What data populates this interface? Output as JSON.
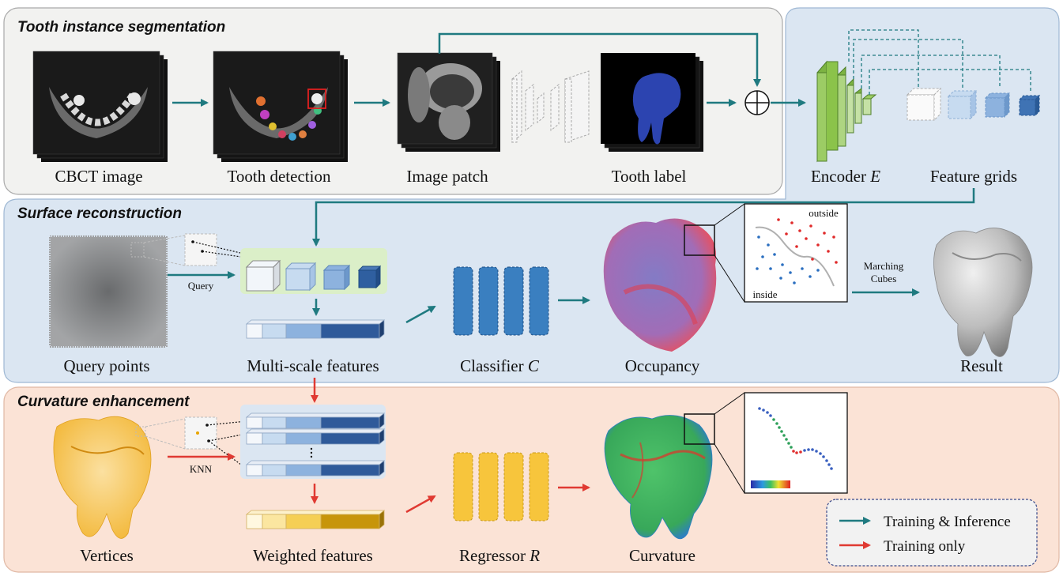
{
  "sections": {
    "segmentation": {
      "title": "Tooth instance segmentation"
    },
    "reconstruction": {
      "title": "Surface reconstruction"
    },
    "curvature": {
      "title": "Curvature enhancement"
    }
  },
  "labels": {
    "cbct": "CBCT image",
    "detection": "Tooth detection",
    "patch": "Image patch",
    "tooth_label": "Tooth label",
    "encoder": "Encoder",
    "encoder_sym": "E",
    "feature_grids": "Feature grids",
    "query_points": "Query points",
    "query": "Query",
    "multiscale": "Multi-scale features",
    "classifier": "Classifier",
    "classifier_sym": "C",
    "occupancy": "Occupancy",
    "outside": "outside",
    "inside": "inside",
    "marching_1": "Marching",
    "marching_2": "Cubes",
    "result": "Result",
    "vertices": "Vertices",
    "knn": "KNN",
    "weighted": "Weighted features",
    "regressor": "Regressor",
    "regressor_sym": "R",
    "curvature": "Curvature"
  },
  "legend": {
    "items": [
      {
        "label": "Training & Inference",
        "color": "#1f7a80"
      },
      {
        "label": "Training only",
        "color": "#e03a32"
      }
    ]
  },
  "colors": {
    "teal": "#1f7a80",
    "red": "#e03a32",
    "seg_bg": "#f2f2f0",
    "recon_bg": "#dbe6f2",
    "curv_bg": "#fbe3d6",
    "encoder_green": "#9ccc65",
    "feature_blue": "#3f73b4",
    "classifier_blue": "#3a7fc0",
    "regressor_yellow": "#f7c53c",
    "weighted_gold": "#c7950a"
  }
}
